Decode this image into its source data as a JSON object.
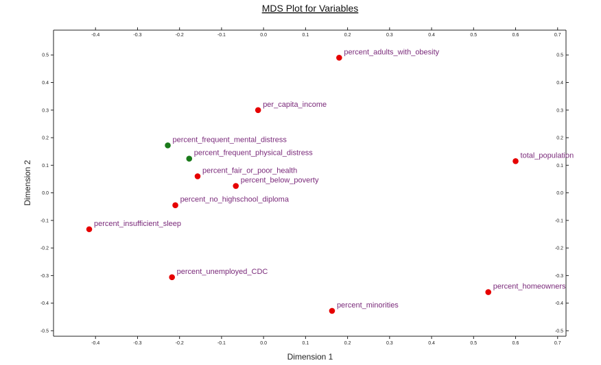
{
  "chart_data": {
    "type": "scatter",
    "title": "MDS Plot for Variables",
    "xlabel": "Dimension 1",
    "ylabel": "Dimension 2",
    "xlim": [
      -0.5,
      0.72
    ],
    "ylim": [
      -0.52,
      0.59
    ],
    "xticks": [
      -0.4,
      -0.3,
      -0.2,
      -0.1,
      0.0,
      0.1,
      0.2,
      0.3,
      0.4,
      0.5,
      0.6,
      0.7
    ],
    "xtick_labels": [
      "-0.4",
      "-0.3",
      "-0.2",
      "-0.1",
      "0.0",
      "0.1",
      "0.2",
      "0.3",
      "0.4",
      "0.5",
      "0.6",
      "0.7"
    ],
    "yticks": [
      0.5,
      0.4,
      0.3,
      0.2,
      0.1,
      0.0,
      -0.1,
      -0.2,
      -0.3,
      -0.4,
      -0.5
    ],
    "ytick_labels": [
      "0.5",
      "0.4",
      "0.3",
      "0.2",
      "0.1",
      "0.0",
      "-0.1",
      "-0.2",
      "-0.3",
      "-0.4",
      "-0.5"
    ],
    "grid": false,
    "colors": {
      "red": "#e60000",
      "green": "#1a7a1a",
      "label": "#7a2a7a"
    },
    "points": [
      {
        "label": "percent_adults_with_obesity",
        "x": 0.18,
        "y": 0.49,
        "color": "red"
      },
      {
        "label": "per_capita_income",
        "x": -0.013,
        "y": 0.3,
        "color": "red"
      },
      {
        "label": "percent_frequent_mental_distress",
        "x": -0.228,
        "y": 0.172,
        "color": "green"
      },
      {
        "label": "percent_frequent_physical_distress",
        "x": -0.177,
        "y": 0.124,
        "color": "green"
      },
      {
        "label": "percent_fair_or_poor_health",
        "x": -0.157,
        "y": 0.06,
        "color": "red"
      },
      {
        "label": "percent_below_poverty",
        "x": -0.066,
        "y": 0.025,
        "color": "red"
      },
      {
        "label": "percent_no_highschool_diploma",
        "x": -0.21,
        "y": -0.045,
        "color": "red"
      },
      {
        "label": "percent_insufficient_sleep",
        "x": -0.415,
        "y": -0.132,
        "color": "red"
      },
      {
        "label": "total_population",
        "x": 0.6,
        "y": 0.115,
        "color": "red"
      },
      {
        "label": "percent_unemployed_CDC",
        "x": -0.218,
        "y": -0.306,
        "color": "red"
      },
      {
        "label": "percent_homeowners",
        "x": 0.535,
        "y": -0.36,
        "color": "red"
      },
      {
        "label": "percent_minorities",
        "x": 0.163,
        "y": -0.428,
        "color": "red"
      }
    ]
  }
}
